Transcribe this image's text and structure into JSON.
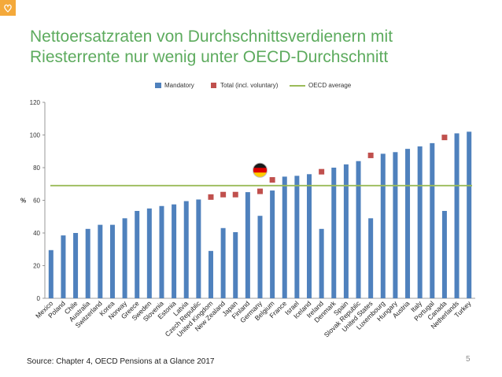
{
  "slide": {
    "title_line1": "Nettoersatzraten von Durchschnittsverdienern mit",
    "title_line2": "Riesterrente nur wenig unter OECD-Durchschnitt",
    "source": "Source: Chapter 4, OECD Pensions at a Glance 2017",
    "page_number": "5"
  },
  "colors": {
    "title": "#5dab5e",
    "bars": "#4f81bd",
    "markers": "#c0504d",
    "oecd_line": "#9bbb59"
  },
  "chart_data": {
    "type": "bar",
    "title": "",
    "xlabel": "",
    "ylabel": "%",
    "ylim": [
      0,
      120
    ],
    "yticks": [
      0,
      20,
      40,
      60,
      80,
      100,
      120
    ],
    "grid": false,
    "legend_position": "top",
    "categories": [
      "Mexico",
      "Poland",
      "Chile",
      "Australia",
      "Switzerland",
      "Korea",
      "Norway",
      "Greece",
      "Sweden",
      "Slovenia",
      "Estonia",
      "Latvia",
      "Czech Republic",
      "United Kingdom",
      "New Zealand",
      "Japan",
      "Finland",
      "Germany",
      "Belgium",
      "France",
      "Israel",
      "Iceland",
      "Ireland",
      "Denmark",
      "Spain",
      "Slovak Republic",
      "United States",
      "Luxembourg",
      "Hungary",
      "Austria",
      "Italy",
      "Portugal",
      "Canada",
      "Netherlands",
      "Turkey"
    ],
    "series": [
      {
        "name": "Mandatory",
        "kind": "bar",
        "values": [
          29.5,
          38.5,
          40,
          42.5,
          45,
          45,
          49,
          53.5,
          55,
          56.5,
          57.5,
          59.5,
          60.5,
          29,
          43,
          40.5,
          65,
          50.5,
          66,
          74.5,
          75,
          76,
          42.5,
          80,
          82,
          84,
          49,
          88.5,
          89.5,
          91.5,
          93,
          95,
          53.5,
          101,
          102
        ]
      },
      {
        "name": "Total (incl. voluntary)",
        "kind": "marker",
        "values": [
          null,
          null,
          null,
          null,
          null,
          null,
          null,
          null,
          null,
          null,
          null,
          null,
          null,
          62,
          63.5,
          63.5,
          null,
          65.5,
          72.5,
          null,
          null,
          null,
          77.5,
          null,
          null,
          null,
          87.5,
          null,
          null,
          null,
          null,
          null,
          98.5,
          null,
          null
        ]
      },
      {
        "name": "OECD average",
        "kind": "line",
        "value": 69
      }
    ],
    "highlight": {
      "category": "Germany",
      "marker": "german-flag",
      "value": 77
    }
  }
}
